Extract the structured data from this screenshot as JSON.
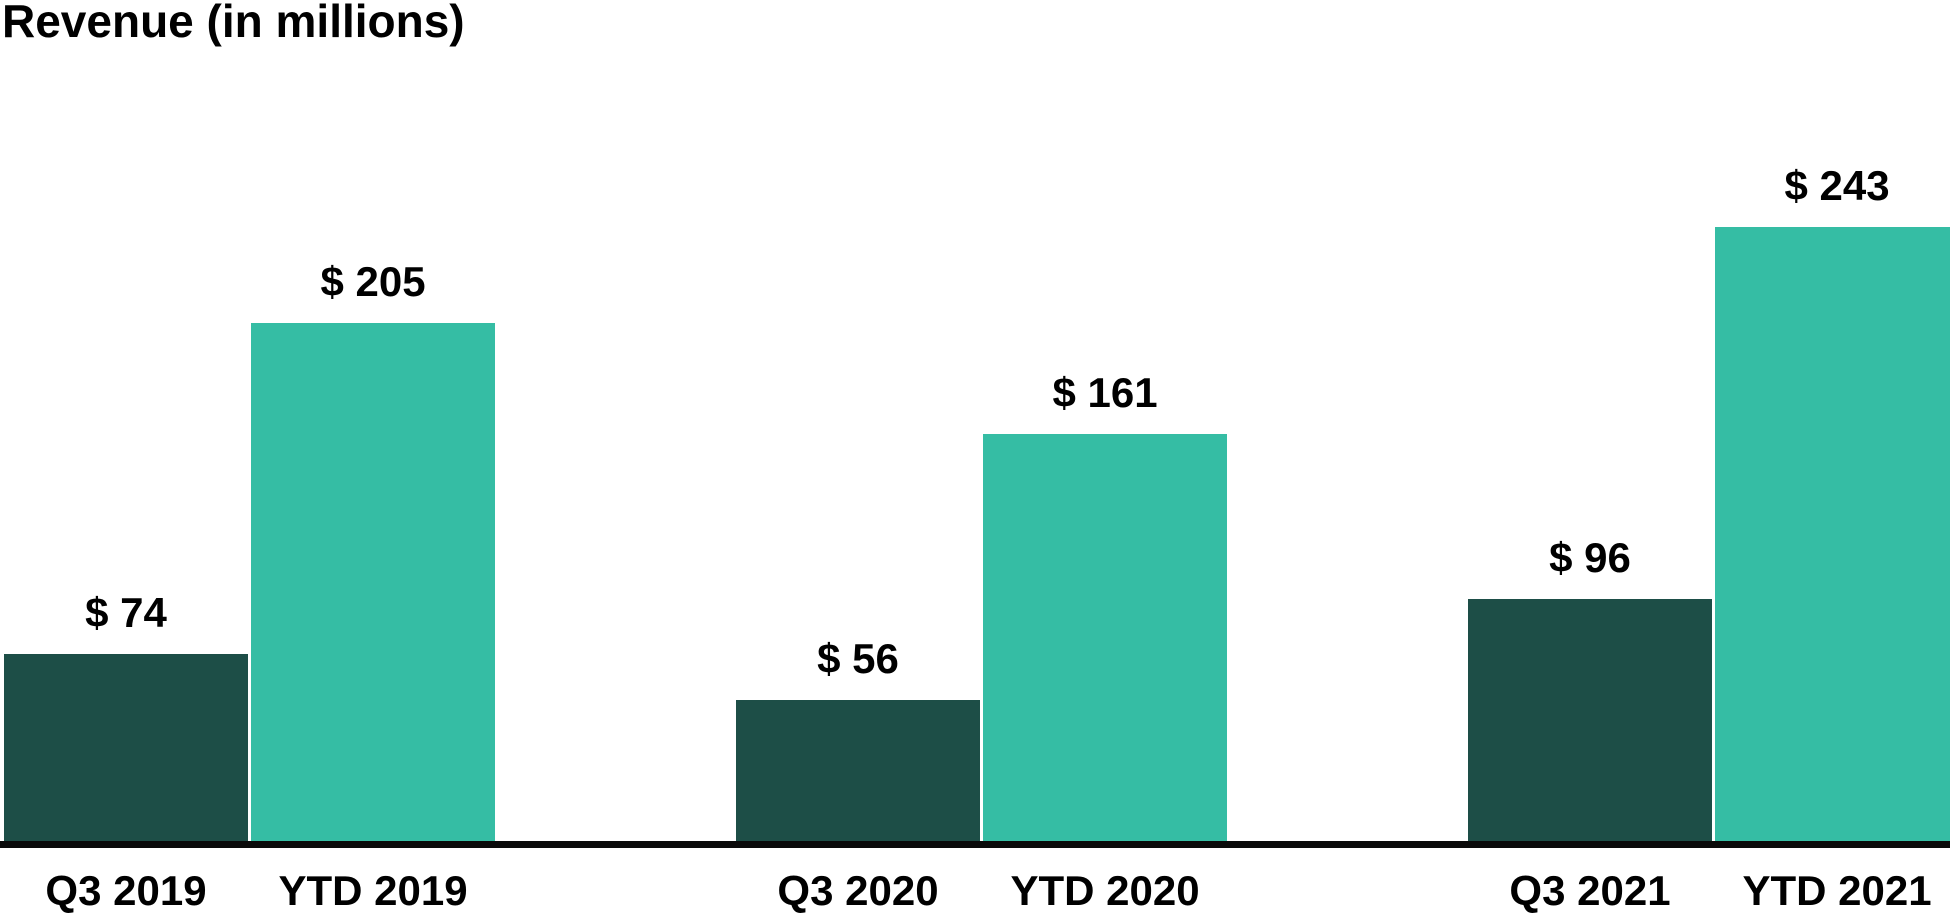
{
  "title": "Revenue (in millions)",
  "chart_data": {
    "type": "bar",
    "title": "Revenue (in millions)",
    "orientation": "vertical",
    "grid": false,
    "legend": "none",
    "ylim": [
      0,
      260
    ],
    "value_label_format": "$ {value}",
    "categories": [
      "Q3 2019",
      "YTD 2019",
      "Q3 2020",
      "YTD 2020",
      "Q3 2021",
      "YTD 2021"
    ],
    "values": [
      74,
      205,
      56,
      161,
      96,
      243
    ],
    "bars": [
      {
        "category": "Q3 2019",
        "value": 74,
        "label": "$ 74",
        "series": "quarter"
      },
      {
        "category": "YTD 2019",
        "value": 205,
        "label": "$ 205",
        "series": "ytd"
      },
      {
        "category": "Q3 2020",
        "value": 56,
        "label": "$ 56",
        "series": "quarter"
      },
      {
        "category": "YTD 2020",
        "value": 161,
        "label": "$ 161",
        "series": "ytd"
      },
      {
        "category": "Q3 2021",
        "value": 96,
        "label": "$ 96",
        "series": "quarter"
      },
      {
        "category": "YTD 2021",
        "value": 243,
        "label": "$ 243",
        "series": "ytd"
      }
    ],
    "groups": [
      {
        "year": "2019",
        "categories": [
          "Q3 2019",
          "YTD 2019"
        ]
      },
      {
        "year": "2020",
        "categories": [
          "Q3 2020",
          "YTD 2020"
        ]
      },
      {
        "year": "2021",
        "categories": [
          "Q3 2021",
          "YTD 2021"
        ]
      }
    ],
    "colors": {
      "quarter": "#1d4e47",
      "ytd": "#35bda4",
      "axis_line": "#0a0a0a",
      "text": "#000000",
      "background": "#ffffff"
    }
  }
}
